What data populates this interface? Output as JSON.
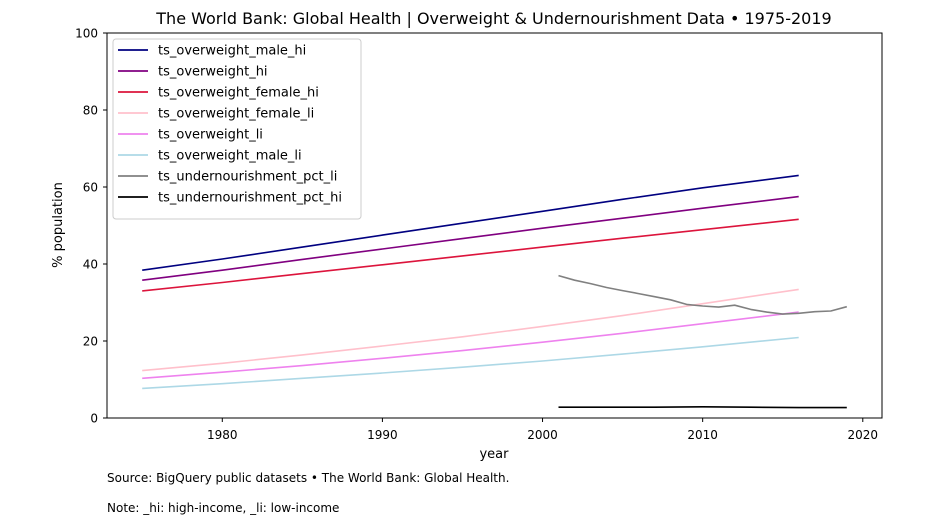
{
  "chart_data": {
    "type": "line",
    "title": "The World Bank: Global Health | Overweight & Undernourishment Data • 1975-2019",
    "xlabel": "year",
    "ylabel": "% population",
    "xlim": [
      1972.8,
      2021.2
    ],
    "ylim": [
      0,
      100
    ],
    "xticks": [
      1980,
      1990,
      2000,
      2010,
      2020
    ],
    "yticks": [
      0,
      20,
      40,
      60,
      80,
      100
    ],
    "grid": false,
    "legend_position": "upper left",
    "series": [
      {
        "name": "ts_overweight_male_hi",
        "color": "#000080",
        "x": [
          1975,
          1980,
          1985,
          1990,
          1995,
          2000,
          2005,
          2010,
          2016
        ],
        "y": [
          38.4,
          41.3,
          44.4,
          47.5,
          50.6,
          53.7,
          56.8,
          59.8,
          63.0
        ]
      },
      {
        "name": "ts_overweight_hi",
        "color": "#800080",
        "x": [
          1975,
          1980,
          1985,
          1990,
          1995,
          2000,
          2005,
          2010,
          2016
        ],
        "y": [
          35.8,
          38.4,
          41.2,
          43.9,
          46.6,
          49.3,
          51.9,
          54.5,
          57.5
        ]
      },
      {
        "name": "ts_overweight_female_hi",
        "color": "#DC143C",
        "x": [
          1975,
          1980,
          1985,
          1990,
          1995,
          2000,
          2005,
          2010,
          2016
        ],
        "y": [
          33.0,
          35.2,
          37.5,
          39.8,
          42.1,
          44.4,
          46.7,
          48.9,
          51.6
        ]
      },
      {
        "name": "ts_overweight_female_li",
        "color": "#FFC0CB",
        "x": [
          1975,
          1980,
          1985,
          1990,
          1995,
          2000,
          2005,
          2010,
          2016
        ],
        "y": [
          12.3,
          14.2,
          16.4,
          18.7,
          21.1,
          23.8,
          26.6,
          29.7,
          33.4
        ]
      },
      {
        "name": "ts_overweight_li",
        "color": "#EE82EE",
        "x": [
          1975,
          1980,
          1985,
          1990,
          1995,
          2000,
          2005,
          2010,
          2016
        ],
        "y": [
          10.3,
          11.9,
          13.6,
          15.5,
          17.5,
          19.7,
          22.0,
          24.5,
          27.5
        ]
      },
      {
        "name": "ts_overweight_male_li",
        "color": "#ADD8E6",
        "x": [
          1975,
          1980,
          1985,
          1990,
          1995,
          2000,
          2005,
          2010,
          2016
        ],
        "y": [
          7.7,
          8.9,
          10.3,
          11.7,
          13.2,
          14.8,
          16.6,
          18.5,
          20.9
        ]
      },
      {
        "name": "ts_undernourishment_pct_li",
        "color": "#808080",
        "x": [
          2001,
          2002,
          2003,
          2004,
          2005,
          2006,
          2007,
          2008,
          2009,
          2010,
          2011,
          2012,
          2013,
          2014,
          2015,
          2016,
          2017,
          2018,
          2019
        ],
        "y": [
          37.0,
          35.8,
          34.9,
          33.9,
          33.1,
          32.3,
          31.5,
          30.7,
          29.5,
          29.1,
          28.8,
          29.3,
          28.2,
          27.5,
          27.0,
          27.2,
          27.6,
          27.8,
          28.9
        ]
      },
      {
        "name": "ts_undernourishment_pct_hi",
        "color": "#000000",
        "x": [
          2001,
          2004,
          2007,
          2010,
          2013,
          2016,
          2019
        ],
        "y": [
          2.8,
          2.8,
          2.8,
          2.9,
          2.8,
          2.7,
          2.7
        ]
      }
    ]
  },
  "footer": {
    "source": "Source: BigQuery public datasets • The World Bank: Global Health.",
    "note": "Note: _hi: high-income, _li: low-income"
  }
}
